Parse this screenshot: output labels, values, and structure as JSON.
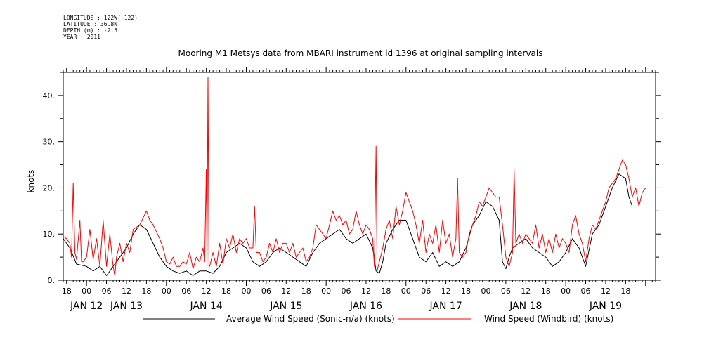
{
  "metadata": {
    "longitude": "LONGITUDE : 122W(-122)",
    "latitude": "LATITUDE : 36.8N",
    "depth": "DEPTH (m) : -2.5",
    "year": "YEAR : 2011"
  },
  "colors": {
    "average": "#000000",
    "windbird": "#ff0000"
  },
  "chart_data": {
    "type": "line",
    "title": "Mooring M1 Metsys data from MBARI instrument id 1396 at original sampling intervals",
    "ylabel": "knots",
    "xlabel": "",
    "ylim": [
      0,
      45
    ],
    "yticks": [
      0,
      10,
      20,
      30,
      40
    ],
    "ytick_labels": [
      "0.",
      "10.",
      "20.",
      "30.",
      "40."
    ],
    "xlim_hours": [
      -7,
      171
    ],
    "x_note_unused": "",
    "xticks_hours": [
      -6,
      0,
      6,
      12,
      18,
      24,
      30,
      36,
      42,
      48,
      54,
      60,
      66,
      72,
      78,
      84,
      90,
      96,
      102,
      108,
      114,
      120,
      126,
      132,
      138,
      144,
      150,
      156,
      162
    ],
    "xtick_labels": [
      "18",
      "00",
      "06",
      "12",
      "18",
      "00",
      "06",
      "12",
      "18",
      "00",
      "06",
      "12",
      "18",
      "00",
      "06",
      "12",
      "18",
      "00",
      "06",
      "12",
      "18",
      "00",
      "06",
      "12",
      "18",
      "00",
      "06",
      "12",
      "18"
    ],
    "day_labels": [
      {
        "label": "JAN 12",
        "hour": 0
      },
      {
        "label": "JAN 13",
        "hour": 12
      },
      {
        "label": "JAN 14",
        "hour": 36
      },
      {
        "label": "JAN 15",
        "hour": 60
      },
      {
        "label": "JAN 16",
        "hour": 84
      },
      {
        "label": "JAN 17",
        "hour": 108
      },
      {
        "label": "JAN 18",
        "hour": 132
      },
      {
        "label": "JAN 19",
        "hour": 156
      }
    ],
    "series": [
      {
        "name": "Average Wind Speed (Sonic-n/a) (knots)",
        "color": "#000000",
        "points": [
          [
            -7,
            9
          ],
          [
            -5,
            7
          ],
          [
            -3,
            3.5
          ],
          [
            0,
            3
          ],
          [
            2,
            2
          ],
          [
            4,
            3
          ],
          [
            6,
            1
          ],
          [
            8,
            3
          ],
          [
            10,
            5
          ],
          [
            12,
            7
          ],
          [
            14,
            10
          ],
          [
            16,
            12
          ],
          [
            18,
            11
          ],
          [
            20,
            8
          ],
          [
            22,
            5
          ],
          [
            24,
            3
          ],
          [
            26,
            2
          ],
          [
            28,
            1.5
          ],
          [
            30,
            2
          ],
          [
            32,
            1
          ],
          [
            34,
            2
          ],
          [
            36,
            2
          ],
          [
            38,
            1.5
          ],
          [
            40,
            3
          ],
          [
            42,
            6
          ],
          [
            44,
            7
          ],
          [
            46,
            8
          ],
          [
            48,
            7
          ],
          [
            50,
            4
          ],
          [
            52,
            3
          ],
          [
            54,
            4
          ],
          [
            56,
            6
          ],
          [
            58,
            7
          ],
          [
            60,
            6
          ],
          [
            62,
            5
          ],
          [
            64,
            4
          ],
          [
            66,
            3
          ],
          [
            68,
            6
          ],
          [
            70,
            8
          ],
          [
            72,
            9
          ],
          [
            74,
            10
          ],
          [
            76,
            11
          ],
          [
            78,
            9
          ],
          [
            80,
            8
          ],
          [
            82,
            9
          ],
          [
            84,
            10
          ],
          [
            86,
            7
          ],
          [
            87,
            2
          ],
          [
            88,
            1.5
          ],
          [
            89,
            4
          ],
          [
            90,
            8
          ],
          [
            92,
            11
          ],
          [
            94,
            13
          ],
          [
            96,
            13
          ],
          [
            98,
            9
          ],
          [
            100,
            5
          ],
          [
            102,
            4
          ],
          [
            104,
            6
          ],
          [
            106,
            3
          ],
          [
            108,
            4
          ],
          [
            110,
            3
          ],
          [
            112,
            4
          ],
          [
            114,
            7
          ],
          [
            116,
            12
          ],
          [
            118,
            14
          ],
          [
            120,
            17
          ],
          [
            122,
            16
          ],
          [
            124,
            13
          ],
          [
            125,
            4
          ],
          [
            126,
            2.5
          ],
          [
            127,
            5
          ],
          [
            128,
            7
          ],
          [
            130,
            8
          ],
          [
            132,
            9
          ],
          [
            134,
            7
          ],
          [
            136,
            6
          ],
          [
            138,
            5
          ],
          [
            140,
            3
          ],
          [
            142,
            4
          ],
          [
            144,
            6
          ],
          [
            146,
            9
          ],
          [
            148,
            7
          ],
          [
            150,
            3
          ],
          [
            152,
            10
          ],
          [
            154,
            12
          ],
          [
            156,
            16
          ],
          [
            158,
            20
          ],
          [
            160,
            23
          ],
          [
            162,
            22
          ],
          [
            163,
            18
          ],
          [
            164,
            16
          ]
        ]
      },
      {
        "name": "Wind Speed (Windbird) (knots)",
        "color": "#ff0000",
        "points": [
          [
            -7,
            9.5
          ],
          [
            -6,
            9
          ],
          [
            -5,
            8
          ],
          [
            -4.5,
            5
          ],
          [
            -4,
            21
          ],
          [
            -3.5,
            6
          ],
          [
            -3,
            4.5
          ],
          [
            -2,
            13
          ],
          [
            -1.5,
            4
          ],
          [
            -1,
            4
          ],
          [
            0,
            5
          ],
          [
            1,
            11
          ],
          [
            2,
            4.5
          ],
          [
            3,
            9
          ],
          [
            4,
            3
          ],
          [
            5,
            13
          ],
          [
            6,
            3
          ],
          [
            7,
            10
          ],
          [
            8,
            3
          ],
          [
            8.5,
            1
          ],
          [
            9,
            5
          ],
          [
            10,
            8
          ],
          [
            11,
            4
          ],
          [
            12,
            8
          ],
          [
            13,
            6
          ],
          [
            14,
            11
          ],
          [
            16,
            12
          ],
          [
            18,
            15
          ],
          [
            19,
            13
          ],
          [
            20,
            12
          ],
          [
            22,
            9
          ],
          [
            23,
            7
          ],
          [
            24,
            4
          ],
          [
            25,
            3.5
          ],
          [
            26,
            5
          ],
          [
            27,
            3
          ],
          [
            28,
            3
          ],
          [
            29,
            4
          ],
          [
            30,
            3.5
          ],
          [
            31,
            6
          ],
          [
            32,
            2.5
          ],
          [
            33,
            5
          ],
          [
            34,
            4
          ],
          [
            35,
            7
          ],
          [
            35.5,
            4
          ],
          [
            36,
            24
          ],
          [
            36.2,
            3
          ],
          [
            36.5,
            44
          ],
          [
            36.8,
            3
          ],
          [
            37,
            3
          ],
          [
            38,
            6
          ],
          [
            39,
            3
          ],
          [
            40,
            8
          ],
          [
            41,
            3.5
          ],
          [
            42,
            9
          ],
          [
            43,
            7
          ],
          [
            44,
            10
          ],
          [
            45,
            6
          ],
          [
            46,
            9
          ],
          [
            47,
            8
          ],
          [
            48,
            9
          ],
          [
            49,
            7
          ],
          [
            50,
            7
          ],
          [
            50.5,
            16
          ],
          [
            51,
            6
          ],
          [
            52,
            6
          ],
          [
            53,
            4
          ],
          [
            54,
            5
          ],
          [
            55,
            8
          ],
          [
            56,
            6
          ],
          [
            57,
            9
          ],
          [
            58,
            6
          ],
          [
            59,
            8
          ],
          [
            60,
            8
          ],
          [
            61,
            6
          ],
          [
            62,
            8
          ],
          [
            63,
            5
          ],
          [
            64,
            6
          ],
          [
            65,
            7
          ],
          [
            66,
            4
          ],
          [
            67,
            5
          ],
          [
            68,
            7
          ],
          [
            69,
            12
          ],
          [
            70,
            11
          ],
          [
            71,
            10
          ],
          [
            72,
            9
          ],
          [
            73,
            12
          ],
          [
            74,
            15
          ],
          [
            75,
            13
          ],
          [
            76,
            14
          ],
          [
            77,
            12
          ],
          [
            78,
            13
          ],
          [
            79,
            10
          ],
          [
            80,
            11
          ],
          [
            81,
            15
          ],
          [
            82,
            12
          ],
          [
            83,
            10
          ],
          [
            84,
            12
          ],
          [
            85,
            11
          ],
          [
            86,
            9
          ],
          [
            86.5,
            3
          ],
          [
            87,
            29
          ],
          [
            87.3,
            2
          ],
          [
            88,
            4
          ],
          [
            89,
            7
          ],
          [
            90,
            11
          ],
          [
            91,
            13
          ],
          [
            92,
            9
          ],
          [
            93,
            16
          ],
          [
            94,
            12
          ],
          [
            95,
            15
          ],
          [
            96,
            19
          ],
          [
            97,
            17
          ],
          [
            98,
            15
          ],
          [
            99,
            12
          ],
          [
            100,
            8
          ],
          [
            101,
            13
          ],
          [
            102,
            6
          ],
          [
            103,
            10
          ],
          [
            104,
            8
          ],
          [
            105,
            12
          ],
          [
            106,
            6
          ],
          [
            107,
            13
          ],
          [
            108,
            8
          ],
          [
            109,
            10
          ],
          [
            110,
            5
          ],
          [
            111,
            9
          ],
          [
            111.5,
            22
          ],
          [
            112,
            6
          ],
          [
            113,
            5
          ],
          [
            114,
            6
          ],
          [
            115,
            10
          ],
          [
            116,
            12
          ],
          [
            117,
            14
          ],
          [
            118,
            17
          ],
          [
            119,
            16
          ],
          [
            120,
            18
          ],
          [
            121,
            20
          ],
          [
            122,
            19
          ],
          [
            123,
            18
          ],
          [
            124,
            18
          ],
          [
            125,
            12
          ],
          [
            126,
            5
          ],
          [
            127,
            3
          ],
          [
            128,
            6
          ],
          [
            128.5,
            24
          ],
          [
            129,
            8
          ],
          [
            130,
            10
          ],
          [
            131,
            8
          ],
          [
            132,
            10
          ],
          [
            133,
            9
          ],
          [
            134,
            8
          ],
          [
            135,
            12
          ],
          [
            136,
            7
          ],
          [
            137,
            10
          ],
          [
            138,
            6
          ],
          [
            139,
            9
          ],
          [
            140,
            6
          ],
          [
            141,
            10
          ],
          [
            142,
            7
          ],
          [
            143,
            9
          ],
          [
            144,
            8
          ],
          [
            145,
            6
          ],
          [
            146,
            12
          ],
          [
            147,
            14
          ],
          [
            148,
            10
          ],
          [
            149,
            8
          ],
          [
            150,
            4
          ],
          [
            151,
            9
          ],
          [
            152,
            12
          ],
          [
            153,
            11
          ],
          [
            154,
            13
          ],
          [
            155,
            15
          ],
          [
            156,
            17
          ],
          [
            157,
            20
          ],
          [
            158,
            21
          ],
          [
            159,
            22
          ],
          [
            160,
            24
          ],
          [
            161,
            26
          ],
          [
            162,
            25
          ],
          [
            163,
            22
          ],
          [
            164,
            18
          ],
          [
            165,
            20
          ],
          [
            166,
            16
          ],
          [
            167,
            19
          ],
          [
            168,
            20
          ]
        ]
      }
    ],
    "legend_placement": "bottom-center",
    "grid": false
  }
}
